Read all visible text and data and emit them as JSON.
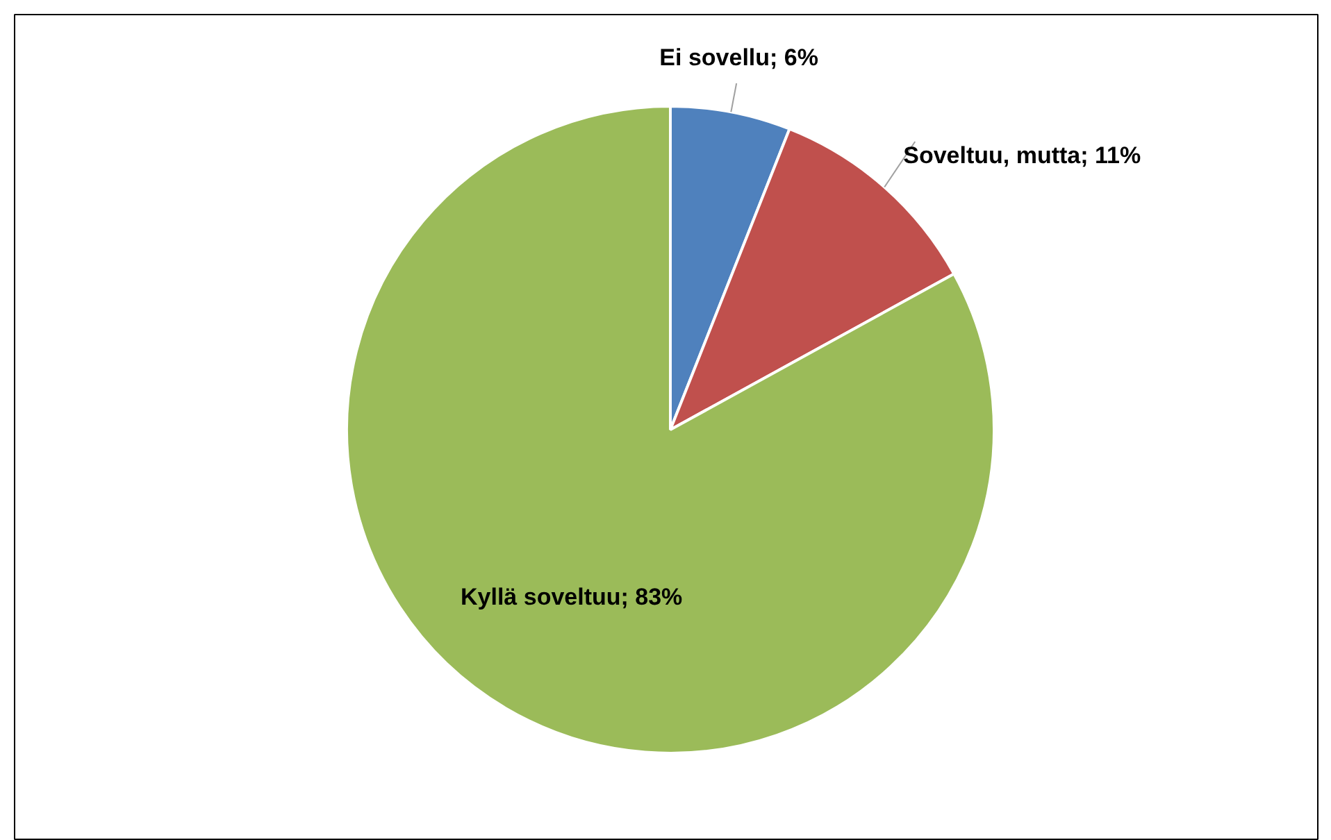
{
  "chart_data": {
    "type": "pie",
    "categories": [
      "Ei sovellu",
      "Soveltuu, mutta",
      "Kyllä soveltuu"
    ],
    "values": [
      6,
      11,
      83
    ],
    "colors": [
      "#4f81bd",
      "#c0504d",
      "#9bbb59"
    ],
    "value_labels": [
      "6%",
      "11%",
      "83%"
    ]
  }
}
